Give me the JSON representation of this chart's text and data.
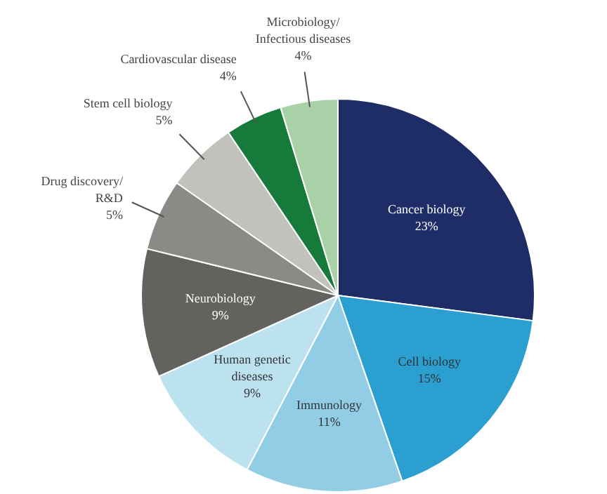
{
  "chart_data": {
    "type": "pie",
    "categories": [
      "Cancer biology",
      "Cell biology",
      "Immunology",
      "Human genetic\ndiseases",
      "Neurobiology",
      "Drug discovery/\nR&D",
      "Stem cell biology",
      "Cardiovascular disease",
      "Microbiology/\nInfectious diseases"
    ],
    "values": [
      23,
      15,
      11,
      9,
      9,
      5,
      5,
      4,
      4
    ],
    "value_labels": [
      "23%",
      "15%",
      "11%",
      "9%",
      "9%",
      "5%",
      "5%",
      "4%",
      "4%"
    ],
    "colors": [
      "#1f2d66",
      "#2b9fd0",
      "#92cde6",
      "#bde2ef",
      "#62635e",
      "#8a8b86",
      "#c2c2bc",
      "#157a3a",
      "#a8d1a8"
    ]
  }
}
